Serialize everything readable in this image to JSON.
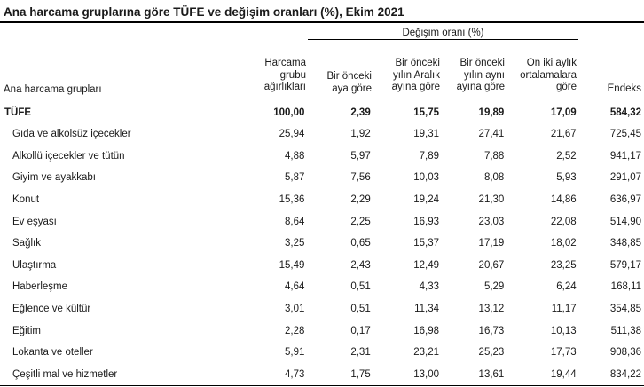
{
  "title": "Ana harcama gruplarına göre TÜFE ve değişim oranları (%), Ekim 2021",
  "header": {
    "change_group": "Değişim oranı (%)",
    "col_label": "Ana harcama grupları",
    "col_weight": [
      "Harcama",
      "grubu",
      "ağırlıkları"
    ],
    "col_monthly": [
      "Bir önceki",
      "aya göre"
    ],
    "col_dec": [
      "Bir önceki",
      "yılın Aralık",
      "ayına göre"
    ],
    "col_yoy": [
      "Bir önceki",
      "yılın aynı",
      "ayına göre"
    ],
    "col_12m": [
      "On iki aylık",
      "ortalamalara",
      "göre"
    ],
    "col_index": "Endeks"
  },
  "rows": [
    {
      "name": "TÜFE",
      "weight": "100,00",
      "monthly": "2,39",
      "dec": "15,75",
      "yoy": "19,89",
      "avg12": "17,09",
      "index": "584,32"
    },
    {
      "name": "Gıda ve alkolsüz içecekler",
      "weight": "25,94",
      "monthly": "1,92",
      "dec": "19,31",
      "yoy": "27,41",
      "avg12": "21,67",
      "index": "725,45"
    },
    {
      "name": "Alkollü içecekler ve tütün",
      "weight": "4,88",
      "monthly": "5,97",
      "dec": "7,89",
      "yoy": "7,88",
      "avg12": "2,52",
      "index": "941,17"
    },
    {
      "name": "Giyim ve ayakkabı",
      "weight": "5,87",
      "monthly": "7,56",
      "dec": "10,03",
      "yoy": "8,08",
      "avg12": "5,93",
      "index": "291,07"
    },
    {
      "name": "Konut",
      "weight": "15,36",
      "monthly": "2,29",
      "dec": "19,24",
      "yoy": "21,30",
      "avg12": "14,86",
      "index": "636,97"
    },
    {
      "name": "Ev eşyası",
      "weight": "8,64",
      "monthly": "2,25",
      "dec": "16,93",
      "yoy": "23,03",
      "avg12": "22,08",
      "index": "514,90"
    },
    {
      "name": "Sağlık",
      "weight": "3,25",
      "monthly": "0,65",
      "dec": "15,37",
      "yoy": "17,19",
      "avg12": "18,02",
      "index": "348,85"
    },
    {
      "name": "Ulaştırma",
      "weight": "15,49",
      "monthly": "2,43",
      "dec": "12,49",
      "yoy": "20,67",
      "avg12": "23,25",
      "index": "579,17"
    },
    {
      "name": "Haberleşme",
      "weight": "4,64",
      "monthly": "0,51",
      "dec": "4,33",
      "yoy": "5,29",
      "avg12": "6,24",
      "index": "168,11"
    },
    {
      "name": "Eğlence ve kültür",
      "weight": "3,01",
      "monthly": "0,51",
      "dec": "11,34",
      "yoy": "13,12",
      "avg12": "11,17",
      "index": "354,85"
    },
    {
      "name": "Eğitim",
      "weight": "2,28",
      "monthly": "0,17",
      "dec": "16,98",
      "yoy": "16,73",
      "avg12": "10,13",
      "index": "511,38"
    },
    {
      "name": "Lokanta ve oteller",
      "weight": "5,91",
      "monthly": "2,31",
      "dec": "23,21",
      "yoy": "25,23",
      "avg12": "17,73",
      "index": "908,36"
    },
    {
      "name": "Çeşitli mal ve hizmetler",
      "weight": "4,73",
      "monthly": "1,75",
      "dec": "13,00",
      "yoy": "13,61",
      "avg12": "19,44",
      "index": "834,22"
    }
  ]
}
